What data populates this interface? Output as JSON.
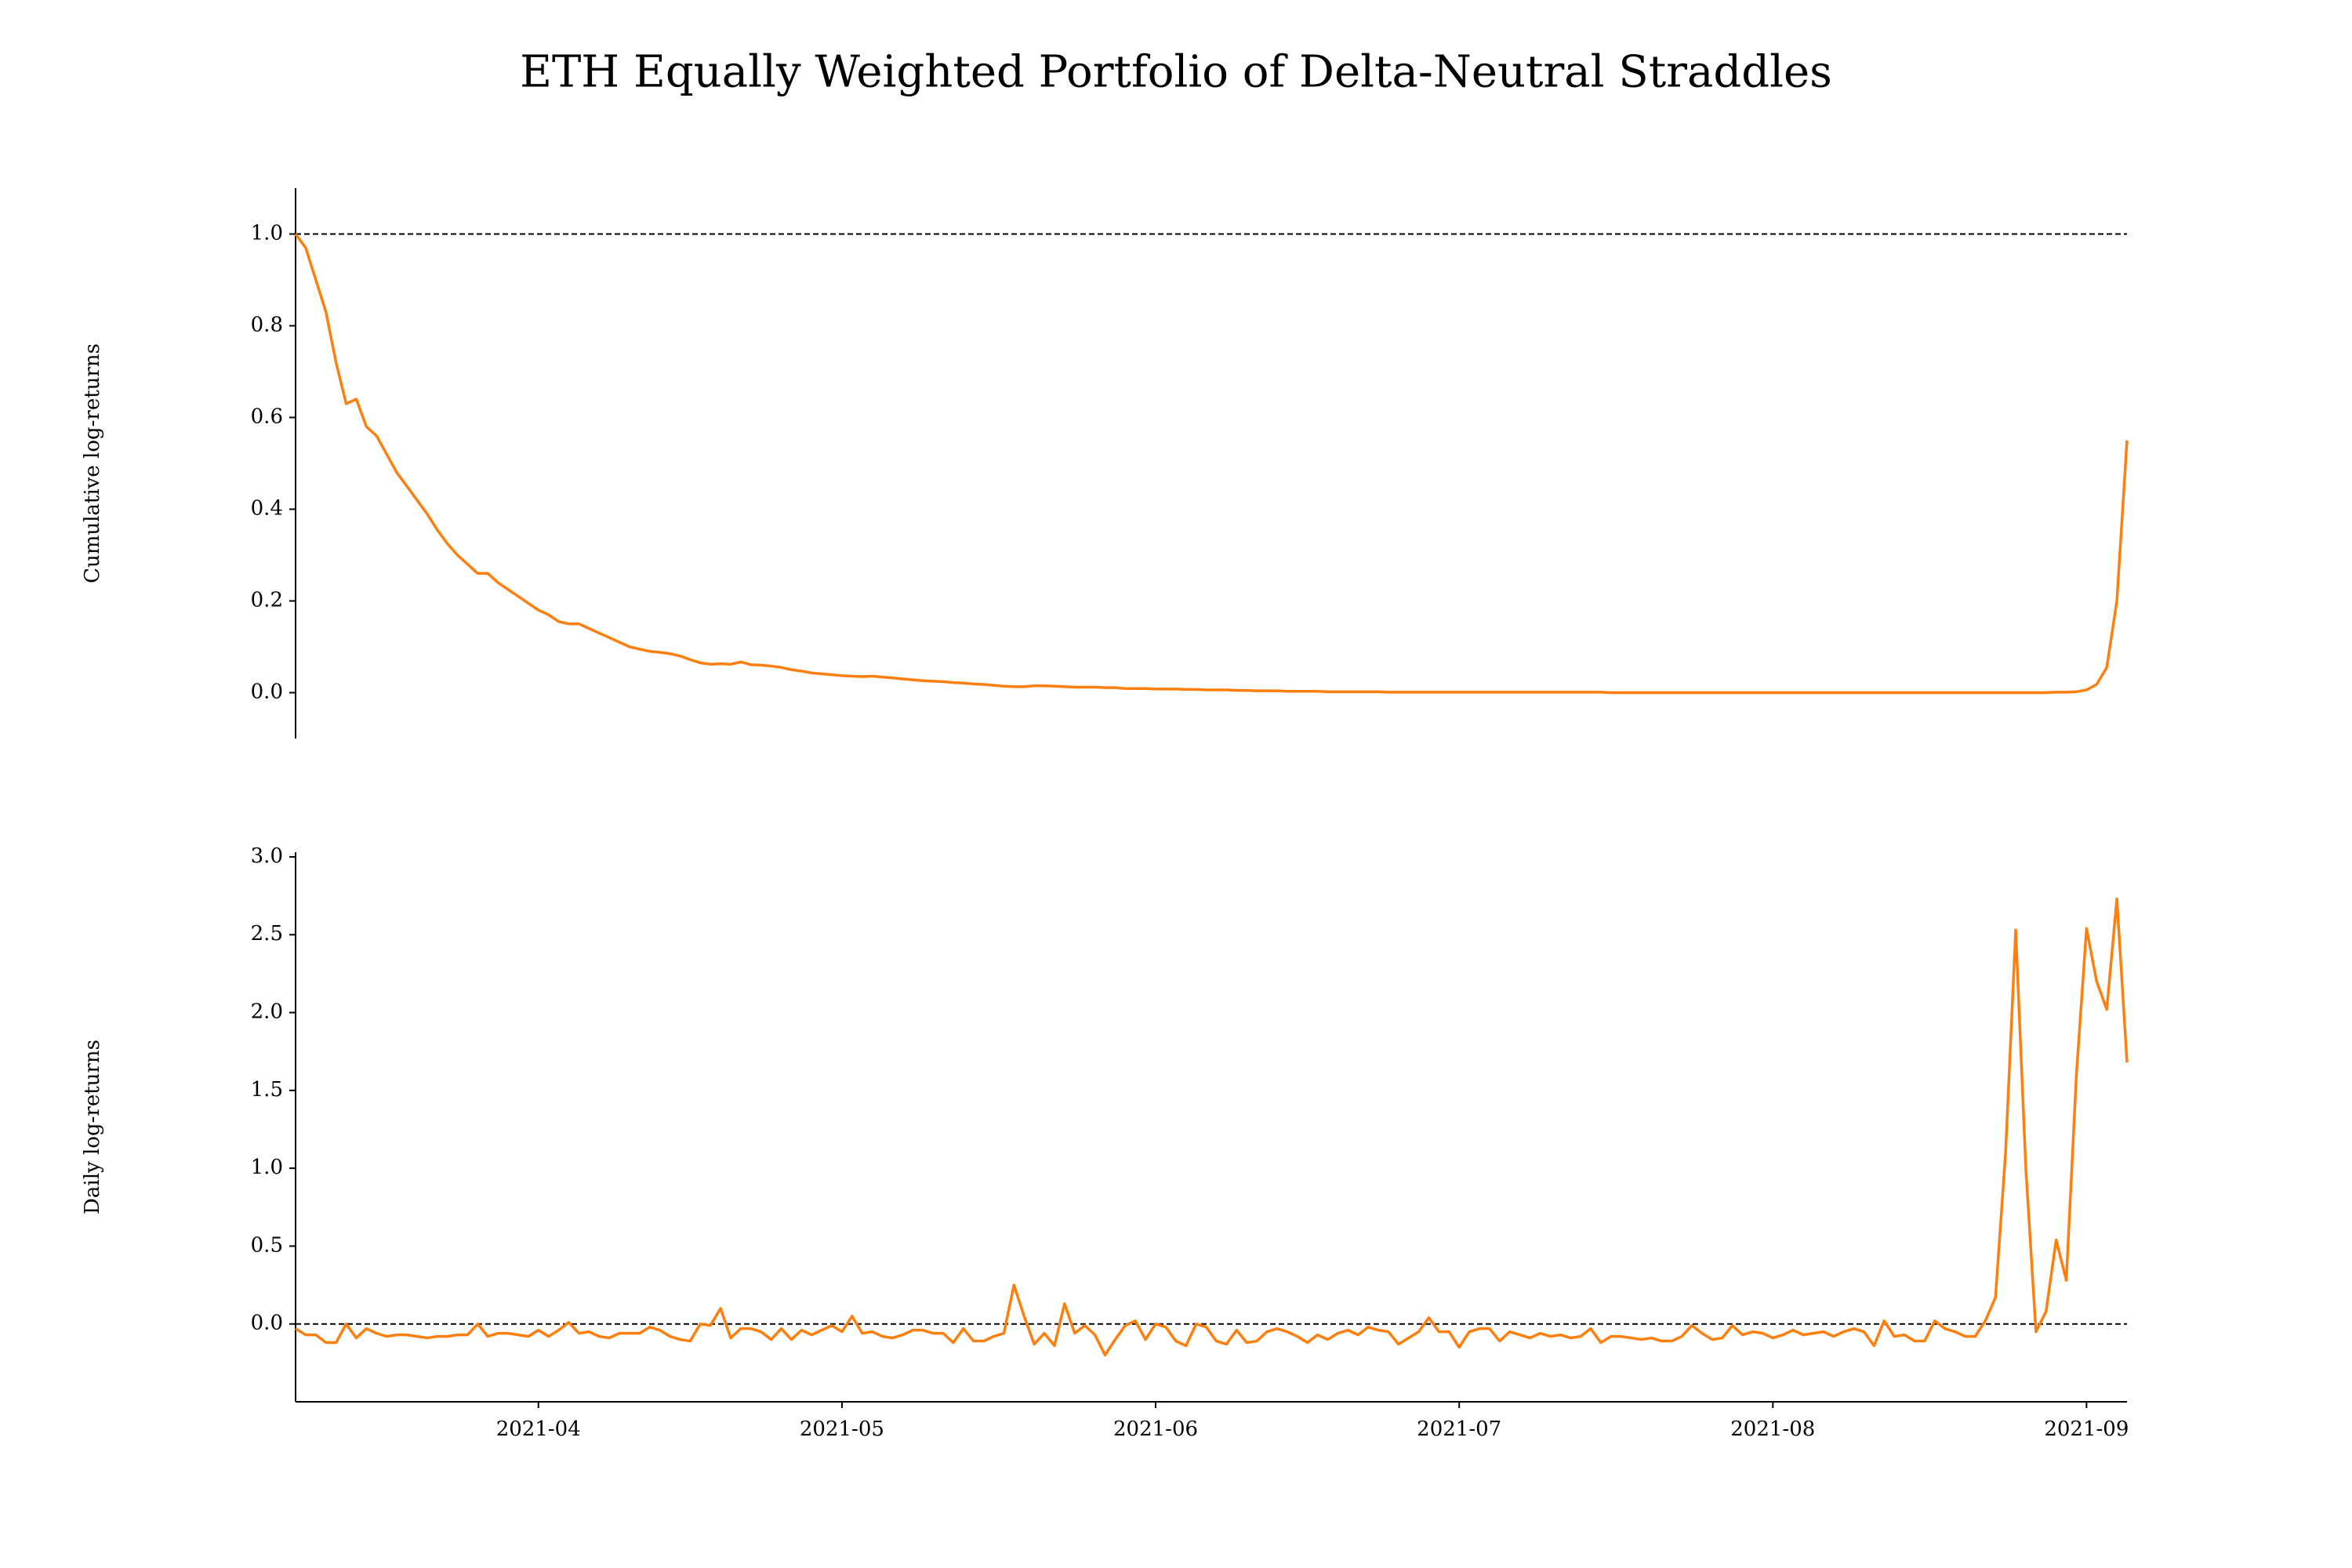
{
  "chart_data": [
    {
      "type": "line",
      "title": "ETH Equally Weighted Portfolio of Delta-Neutral Straddles",
      "y_label": "Cumulative log-returns",
      "xlim": [
        0,
        181
      ],
      "ylim": [
        -0.1,
        1.1
      ],
      "yticks": [
        {
          "value": 0,
          "label": "0.0"
        },
        0.2,
        0.4,
        0.6,
        0.8,
        {
          "value": 1,
          "label": "1.0"
        }
      ],
      "hline": 1,
      "hline_style": "dashed",
      "color": "#ff7f0e",
      "values": [
        1.0,
        0.97,
        0.9,
        0.83,
        0.72,
        0.63,
        0.64,
        0.58,
        0.56,
        0.52,
        0.48,
        0.45,
        0.42,
        0.39,
        0.355,
        0.325,
        0.3,
        0.28,
        0.26,
        0.26,
        0.24,
        0.225,
        0.21,
        0.195,
        0.18,
        0.17,
        0.155,
        0.15,
        0.15,
        0.14,
        0.13,
        0.12,
        0.11,
        0.1,
        0.095,
        0.09,
        0.088,
        0.085,
        0.08,
        0.072,
        0.065,
        0.062,
        0.063,
        0.062,
        0.067,
        0.061,
        0.06,
        0.058,
        0.055,
        0.05,
        0.047,
        0.043,
        0.041,
        0.039,
        0.037,
        0.036,
        0.035,
        0.036,
        0.034,
        0.032,
        0.03,
        0.028,
        0.026,
        0.025,
        0.024,
        0.022,
        0.021,
        0.019,
        0.018,
        0.016,
        0.014,
        0.013,
        0.013,
        0.015,
        0.015,
        0.014,
        0.013,
        0.012,
        0.012,
        0.012,
        0.011,
        0.011,
        0.009,
        0.009,
        0.009,
        0.008,
        0.008,
        0.008,
        0.007,
        0.007,
        0.006,
        0.006,
        0.006,
        0.005,
        0.005,
        0.004,
        0.004,
        0.004,
        0.003,
        0.003,
        0.003,
        0.003,
        0.002,
        0.002,
        0.002,
        0.002,
        0.002,
        0.002,
        0.001,
        0.001,
        0.001,
        0.001,
        0.001,
        0.001,
        0.001,
        0.001,
        0.001,
        0.001,
        0.001,
        0.001,
        0.001,
        0.001,
        0.001,
        0.001,
        0.001,
        0.001,
        0.001,
        0.001,
        0.001,
        0.001,
        0,
        0,
        0,
        0,
        0,
        0,
        0,
        0,
        0,
        0,
        0,
        0,
        0,
        0,
        0,
        0,
        0,
        0,
        0,
        0,
        0,
        0,
        0,
        0,
        0,
        0,
        0,
        0,
        0,
        0,
        0,
        0,
        0,
        0,
        0,
        0,
        0,
        0,
        0,
        0,
        0,
        0,
        0,
        0,
        0.001,
        0.001,
        0.002,
        0.006,
        0.018,
        0.055,
        0.2,
        0.55
      ]
    },
    {
      "type": "line",
      "y_label": "Daily log-returns",
      "xlim": [
        0,
        181
      ],
      "ylim": [
        -0.5,
        3.03
      ],
      "yticks": [
        {
          "value": 0,
          "label": "0.0"
        },
        0.5,
        {
          "value": 1,
          "label": "1.0"
        },
        1.5,
        {
          "value": 2,
          "label": "2.0"
        },
        2.5,
        {
          "value": 3,
          "label": "3.0"
        }
      ],
      "xticks": [
        {
          "value": 24,
          "label": "2021-04"
        },
        {
          "value": 54,
          "label": "2021-05"
        },
        {
          "value": 85,
          "label": "2021-06"
        },
        {
          "value": 115,
          "label": "2021-07"
        },
        {
          "value": 146,
          "label": "2021-08"
        },
        {
          "value": 177,
          "label": "2021-09"
        }
      ],
      "hline": 0,
      "hline_style": "dashed",
      "color": "#ff7f0e",
      "values": [
        -0.03,
        -0.07,
        -0.07,
        -0.12,
        -0.12,
        0.0,
        -0.09,
        -0.03,
        -0.06,
        -0.08,
        -0.07,
        -0.07,
        -0.08,
        -0.09,
        -0.08,
        -0.08,
        -0.07,
        -0.07,
        0.0,
        -0.08,
        -0.06,
        -0.06,
        -0.07,
        -0.08,
        -0.04,
        -0.08,
        -0.04,
        0.01,
        -0.06,
        -0.05,
        -0.08,
        -0.09,
        -0.06,
        -0.06,
        -0.06,
        -0.02,
        -0.04,
        -0.08,
        -0.1,
        -0.11,
        0.0,
        -0.01,
        0.1,
        -0.09,
        -0.03,
        -0.03,
        -0.05,
        -0.1,
        -0.03,
        -0.1,
        -0.04,
        -0.07,
        -0.04,
        -0.01,
        -0.05,
        0.05,
        -0.06,
        -0.05,
        -0.08,
        -0.09,
        -0.07,
        -0.04,
        -0.04,
        -0.06,
        -0.06,
        -0.12,
        -0.03,
        -0.11,
        -0.11,
        -0.08,
        -0.06,
        0.25,
        0.05,
        -0.13,
        -0.06,
        -0.14,
        0.13,
        -0.06,
        -0.01,
        -0.07,
        -0.2,
        -0.1,
        -0.01,
        0.02,
        -0.1,
        0.0,
        -0.02,
        -0.11,
        -0.14,
        0.0,
        -0.02,
        -0.11,
        -0.13,
        -0.04,
        -0.12,
        -0.11,
        -0.05,
        -0.03,
        -0.05,
        -0.08,
        -0.12,
        -0.07,
        -0.1,
        -0.06,
        -0.04,
        -0.07,
        -0.02,
        -0.04,
        -0.05,
        -0.13,
        -0.09,
        -0.05,
        0.04,
        -0.05,
        -0.05,
        -0.15,
        -0.05,
        -0.03,
        -0.03,
        -0.11,
        -0.05,
        -0.07,
        -0.09,
        -0.06,
        -0.08,
        -0.07,
        -0.09,
        -0.08,
        -0.03,
        -0.12,
        -0.08,
        -0.08,
        -0.09,
        -0.1,
        -0.09,
        -0.11,
        -0.11,
        -0.08,
        -0.01,
        -0.06,
        -0.1,
        -0.09,
        -0.01,
        -0.07,
        -0.05,
        -0.06,
        -0.09,
        -0.07,
        -0.04,
        -0.07,
        -0.06,
        -0.05,
        -0.08,
        -0.05,
        -0.03,
        -0.05,
        -0.14,
        0.02,
        -0.08,
        -0.07,
        -0.11,
        -0.11,
        0.02,
        -0.03,
        -0.05,
        -0.08,
        -0.08,
        0.02,
        0.17,
        1.1,
        2.53,
        1.0,
        -0.05,
        0.08,
        0.54,
        0.28,
        1.6,
        2.54,
        2.2,
        2.02,
        2.73,
        1.68
      ]
    }
  ]
}
